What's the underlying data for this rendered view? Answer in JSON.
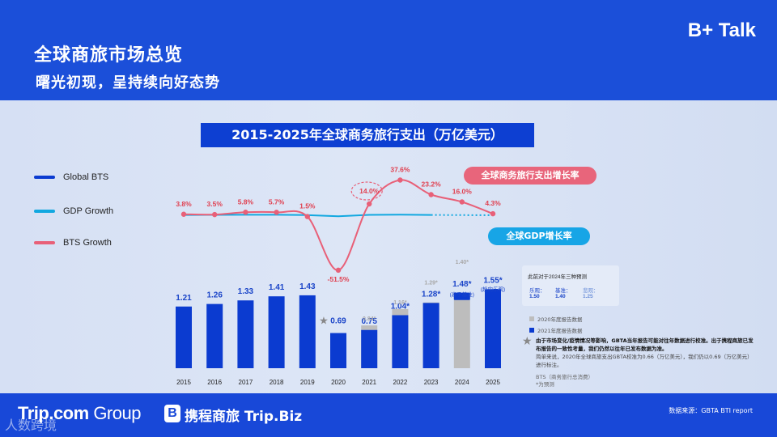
{
  "header": {
    "title": "全球商旅市场总览",
    "subtitle": "曙光初现，呈持续向好态势",
    "brand": "B+ Talk"
  },
  "legend": {
    "global_bts": "Global BTS",
    "gdp_growth": "GDP Growth",
    "bts_growth": "BTS Growth"
  },
  "pills": {
    "bts_rate": "全球商务旅行支出增长率",
    "gdp_rate": "全球GDP增长率"
  },
  "chart_data": {
    "type": "bar",
    "title": "2015-2025年全球商务旅行支出（万亿美元）",
    "categories": [
      "2015",
      "2016",
      "2017",
      "2018",
      "2019",
      "2020",
      "2021",
      "2022",
      "2023",
      "2024",
      "2025"
    ],
    "series": [
      {
        "name": "Global BTS",
        "values": [
          1.21,
          1.26,
          1.33,
          1.41,
          1.43,
          0.69,
          0.75,
          1.04,
          1.28,
          1.48,
          1.55
        ],
        "labels": [
          "1.21",
          "1.26",
          "1.33",
          "1.41",
          "1.43",
          "0.69",
          "0.75",
          "1.04*",
          "1.28*",
          "1.48*",
          "1.55*"
        ]
      },
      {
        "name": "2020年度报告数据",
        "values": [
          null,
          null,
          null,
          null,
          null,
          null,
          0.84,
          1.16,
          1.29,
          1.4,
          null
        ],
        "labels": [
          "",
          "",
          "",
          "",
          "",
          "",
          "0.84*",
          "1.16*",
          "1.29*",
          "1.40*",
          ""
        ]
      },
      {
        "name": "BTS Growth",
        "values": [
          3.8,
          3.5,
          5.8,
          5.7,
          1.5,
          -51.5,
          14.0,
          37.6,
          23.2,
          16.0,
          4.3
        ],
        "labels": [
          "3.8%",
          "3.5%",
          "5.8%",
          "5.7%",
          "1.5%",
          "-51.5%",
          "14.0%",
          "37.6%",
          "23.2%",
          "16.0%",
          "4.3%"
        ]
      },
      {
        "name": "GDP Growth",
        "values": [
          3.1,
          3.2,
          3.3,
          3.3,
          3.0,
          1.8,
          3.2,
          3.4,
          3.1,
          3.0,
          2.9
        ]
      }
    ],
    "bar_notes": {
      "2024": "(高于基准)",
      "2025": "(趋向乐观)"
    },
    "ylim": [
      0,
      1.6
    ]
  },
  "scenario": {
    "heading": "此前对于2024年三种预测",
    "items": [
      {
        "label": "乐观：",
        "value": "1.50"
      },
      {
        "label": "基准：",
        "value": "1.40"
      },
      {
        "label": "悲观：",
        "value": "1.25"
      }
    ]
  },
  "notes": {
    "legend_2020": "2020年度报告数据",
    "legend_2021": "2021年度报告数据",
    "star": "★",
    "main": "由于市场变化/疫情情况等影响，GBTA当年报告可能对往年数据进行校准。出于携程商旅已发布报告的一致性考量，我们仍然以往年已发布数据为准。",
    "detail": "简单来说，2020年全球商旅支出GBTA校准为0.66（万亿美元），我们仍以0.69（万亿美元）进行标注。",
    "bts_def": "BTS（商务旅行总消费）",
    "forecast": "*为预测"
  },
  "footer": {
    "trip": "Trip.com",
    "group": "Group",
    "biz_icon": "B",
    "biz": "携程商旅 Trip.Biz",
    "source": "数据来源：GBTA BTI report",
    "watermark": "人数跨境"
  },
  "colors": {
    "bar": "#0b3bd0",
    "bar_prior": "#bdbdbd",
    "bts_line": "#e86078",
    "gdp_line": "#12a8e0",
    "label_blue": "#1a44c8",
    "label_red": "#e04050"
  }
}
